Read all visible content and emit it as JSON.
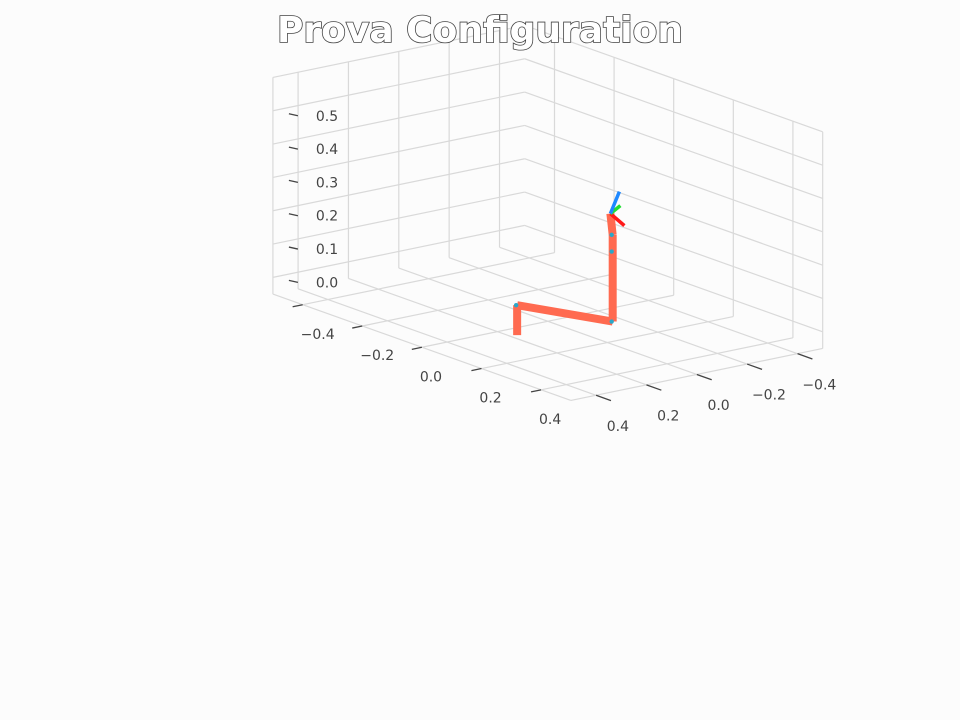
{
  "title": "Prova Configuration",
  "colors": {
    "background": "#fcfcfc",
    "grid": "#d9d9d9",
    "link": "#ff6a50",
    "joint": "#2aa7c9",
    "frame_x": "#ff1a1a",
    "frame_y": "#22dd33",
    "frame_z": "#1e88ff",
    "tick_text": "#444444"
  },
  "chart_data": {
    "type": "line",
    "projection": "3d",
    "title": "Prova Configuration",
    "grid": true,
    "xlim": [
      -0.5,
      0.5
    ],
    "ylim": [
      -0.5,
      0.5
    ],
    "zlim": [
      -0.05,
      0.6
    ],
    "x_ticks": [
      -0.4,
      -0.2,
      0.0,
      0.2,
      0.4
    ],
    "x_tick_labels": [
      "−0.4",
      "−0.2",
      "0.0",
      "0.2",
      "0.4"
    ],
    "y_ticks": [
      -0.4,
      -0.2,
      0.0,
      0.2,
      0.4
    ],
    "y_tick_labels": [
      "−0.4",
      "−0.2",
      "0.0",
      "0.2",
      "0.4"
    ],
    "z_ticks": [
      0.0,
      0.1,
      0.2,
      0.3,
      0.4,
      0.5
    ],
    "z_tick_labels": [
      "0.0",
      "0.1",
      "0.2",
      "0.3",
      "0.4",
      "0.5"
    ],
    "series": [
      {
        "type": "robot_links",
        "points": [
          {
            "x": 0.175,
            "y": 0.045,
            "z": -0.05
          },
          {
            "x": 0.175,
            "y": 0.045,
            "z": 0.04
          },
          {
            "x": 0.05,
            "y": 0.26,
            "z": 0.04
          },
          {
            "x": 0.05,
            "y": 0.26,
            "z": 0.25
          },
          {
            "x": 0.05,
            "y": 0.26,
            "z": 0.3
          },
          {
            "x": 0.0,
            "y": 0.21,
            "z": 0.34
          }
        ]
      }
    ],
    "end_effector_frame": {
      "origin": {
        "x": 0.0,
        "y": 0.21,
        "z": 0.34
      },
      "axes": [
        {
          "axis": "x",
          "dx": 0.05,
          "dy": 0.0,
          "dz": 0.0
        },
        {
          "axis": "y",
          "dx": 0.0,
          "dy": 0.05,
          "dz": 0.0
        },
        {
          "axis": "z",
          "dx": 0.0,
          "dy": 0.0,
          "dz": 0.05
        }
      ]
    }
  }
}
